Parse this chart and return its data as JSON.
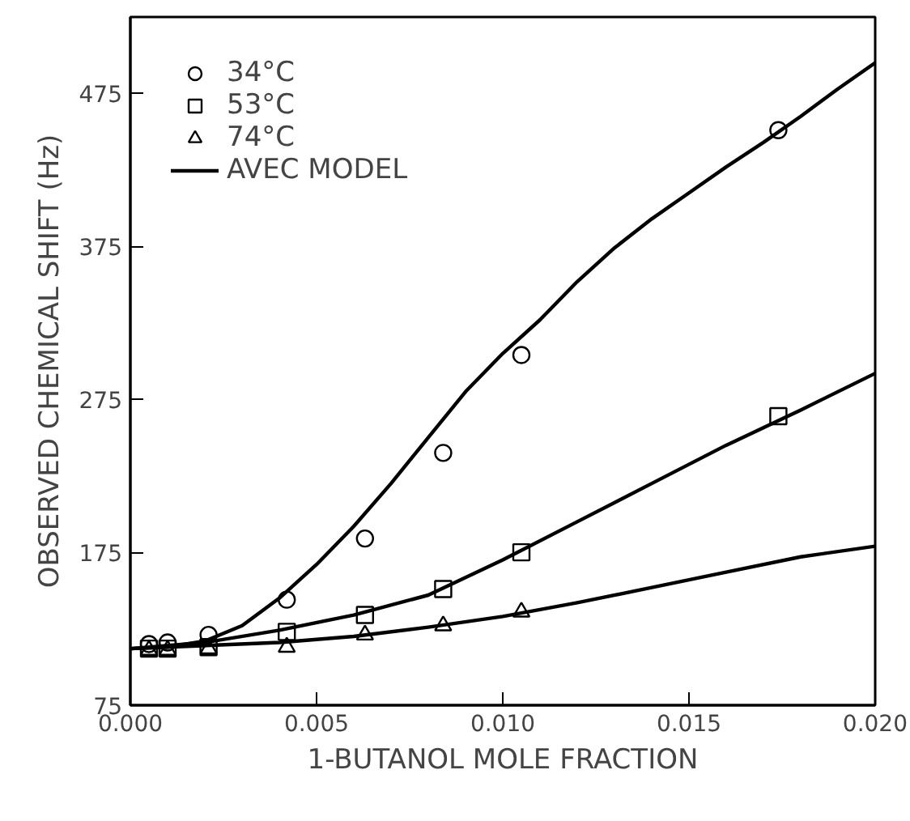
{
  "chart_data": {
    "type": "scatter",
    "xlabel": "1-BUTANOL MOLE FRACTION",
    "ylabel": "OBSERVED CHEMICAL SHIFT (Hz)",
    "xlim": [
      0.0,
      0.02
    ],
    "xticks": [
      {
        "value": 0.0,
        "label": "0.000"
      },
      {
        "value": 0.005,
        "label": "0.005"
      },
      {
        "value": 0.01,
        "label": "0.010"
      },
      {
        "value": 0.015,
        "label": "0.015"
      },
      {
        "value": 0.02,
        "label": "0.020"
      }
    ],
    "ylim": [
      75,
      525
    ],
    "yticks": [
      75,
      175,
      275,
      375,
      475
    ],
    "grid": false,
    "legend": "top left",
    "series": [
      {
        "name": "34°C",
        "marker": "circle",
        "color": "#000000",
        "x": [
          0.0005,
          0.001,
          0.0021,
          0.0042,
          0.0063,
          0.0084,
          0.0105,
          0.0174
        ],
        "values": [
          115,
          116,
          121,
          144,
          184,
          240,
          304,
          451
        ]
      },
      {
        "name": "53°C",
        "marker": "square",
        "color": "#000000",
        "x": [
          0.0005,
          0.001,
          0.0021,
          0.0042,
          0.0063,
          0.0084,
          0.0105,
          0.0174
        ],
        "values": [
          112,
          112,
          113,
          123,
          134,
          151,
          175,
          264
        ]
      },
      {
        "name": "74°C",
        "marker": "triangle",
        "color": "#000000",
        "x": [
          0.0005,
          0.001,
          0.0021,
          0.0042,
          0.0063,
          0.0084,
          0.0105
        ],
        "values": [
          111,
          111,
          112,
          113,
          121,
          127,
          136
        ]
      },
      {
        "name": "AVEC MODEL",
        "type": "line",
        "color": "#000000",
        "x": [
          0.0,
          0.001,
          0.002,
          0.003,
          0.004,
          0.005,
          0.006,
          0.007,
          0.008,
          0.009,
          0.01,
          0.011,
          0.012,
          0.013,
          0.014,
          0.015,
          0.016,
          0.017,
          0.018,
          0.019,
          0.02
        ],
        "values": [
          112,
          113,
          117,
          127,
          145,
          167,
          192,
          220,
          250,
          280,
          305,
          327,
          352,
          374,
          393,
          410,
          427,
          443,
          460,
          478,
          495
        ]
      },
      {
        "type": "line",
        "color": "#000000",
        "x": [
          0.0,
          0.002,
          0.004,
          0.006,
          0.008,
          0.01,
          0.012,
          0.014,
          0.016,
          0.018,
          0.02
        ],
        "values": [
          112,
          116,
          124,
          134,
          147,
          170,
          195,
          220,
          245,
          268,
          292
        ]
      },
      {
        "type": "line",
        "color": "#000000",
        "x": [
          0.0,
          0.004,
          0.006,
          0.008,
          0.01,
          0.012,
          0.014,
          0.016,
          0.018,
          0.02
        ],
        "values": [
          112,
          116,
          120,
          126,
          133,
          142,
          152,
          162,
          172,
          179
        ]
      }
    ]
  }
}
